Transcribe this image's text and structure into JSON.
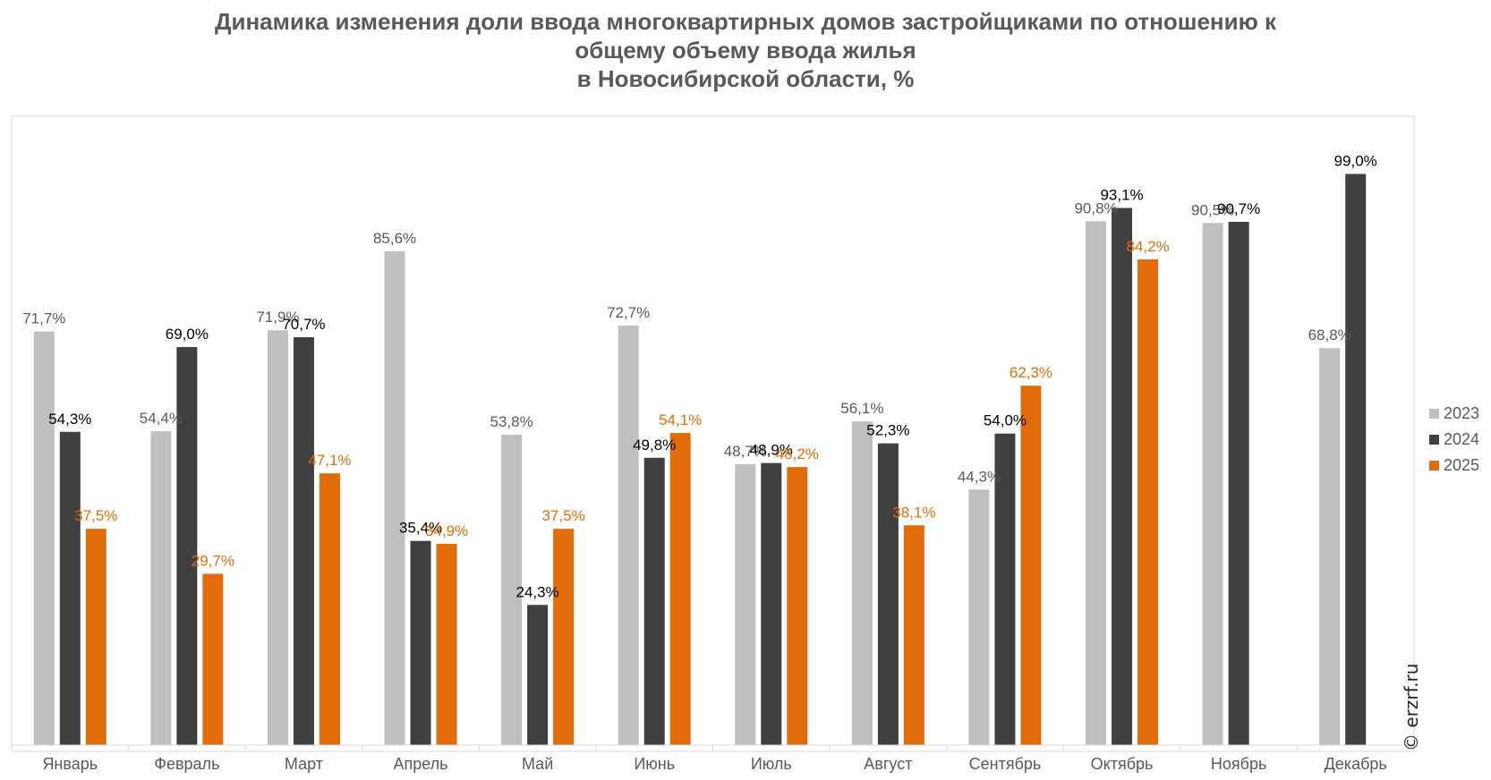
{
  "title_lines": [
    "Динамика изменения доли ввода многоквартирных домов застройщиками по отношению к",
    "общему объему ввода жилья",
    "в Новосибирской области, %"
  ],
  "watermark": "© erzrf.ru",
  "colors": {
    "2023": "#bfbfbf",
    "2024": "#404040",
    "2025": "#e36c0a",
    "label_2023": "#595959",
    "label_2024": "#000000",
    "label_2025": "#e36c0a"
  },
  "chart_data": {
    "type": "bar",
    "title": "Динамика изменения доли ввода многоквартирных домов застройщиками по отношению к общему объему ввода жилья в Новосибирской области, %",
    "categories": [
      "Январь",
      "Февраль",
      "Март",
      "Апрель",
      "Май",
      "Июнь",
      "Июль",
      "Август",
      "Сентябрь",
      "Октябрь",
      "Ноябрь",
      "Декабрь"
    ],
    "series": [
      {
        "name": "2023",
        "values": [
          71.7,
          54.4,
          71.9,
          85.6,
          53.8,
          72.7,
          48.7,
          56.1,
          44.3,
          90.8,
          90.5,
          68.8
        ],
        "labels": [
          "71,7%",
          "54,4%",
          "71,9%",
          "85,6%",
          "53,8%",
          "72,7%",
          "48,7%",
          "56,1%",
          "44,3%",
          "90,8%",
          "90,5%",
          "68,8%"
        ]
      },
      {
        "name": "2024",
        "values": [
          54.3,
          69.0,
          70.7,
          35.4,
          24.3,
          49.8,
          48.9,
          52.3,
          54.0,
          93.1,
          90.7,
          99.0
        ],
        "labels": [
          "54,3%",
          "69,0%",
          "70,7%",
          "35,4%",
          "24,3%",
          "49,8%",
          "48,9%",
          "52,3%",
          "54,0%",
          "93,1%",
          "90,7%",
          "99,0%"
        ]
      },
      {
        "name": "2025",
        "values": [
          37.5,
          29.7,
          47.1,
          34.9,
          37.5,
          54.1,
          48.2,
          38.1,
          62.3,
          84.2,
          null,
          null
        ],
        "labels": [
          "37,5%",
          "29,7%",
          "47,1%",
          "34,9%",
          "37,5%",
          "54,1%",
          "48,2%",
          "38,1%",
          "62,3%",
          "84,2%",
          null,
          null
        ]
      }
    ],
    "ylim": [
      0,
      100
    ],
    "grid": false,
    "legend": "right"
  }
}
